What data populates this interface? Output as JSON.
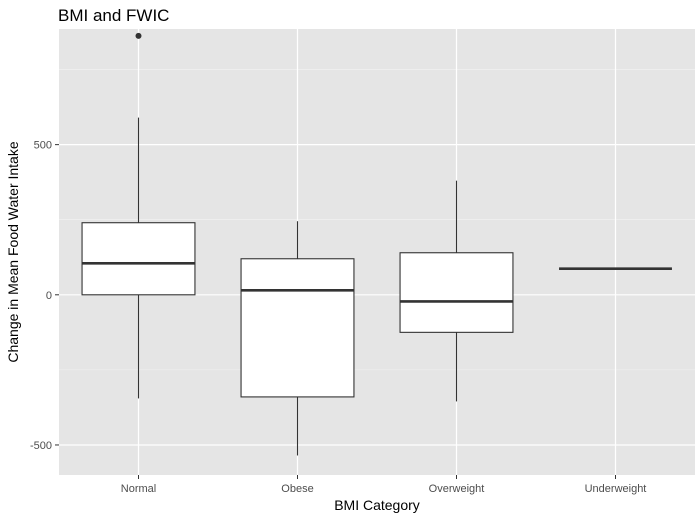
{
  "chart_data": {
    "type": "boxplot",
    "title": "BMI and FWIC",
    "xlabel": "BMI Category",
    "ylabel": "Change in Mean Food Water Intake",
    "categories": [
      "Normal",
      "Obese",
      "Overweight",
      "Underweight"
    ],
    "ylim": [
      -600,
      885
    ],
    "yticks": [
      -500,
      0,
      500
    ],
    "ytick_labels": [
      "-500",
      "0",
      "500"
    ],
    "grid": true,
    "legend": "none",
    "boxes": [
      {
        "category": "Normal",
        "lower_whisker": -345,
        "q1": 0,
        "median": 105,
        "q3": 240,
        "upper_whisker": 590,
        "outliers": [
          862
        ]
      },
      {
        "category": "Obese",
        "lower_whisker": -535,
        "q1": -340,
        "median": 15,
        "q3": 120,
        "upper_whisker": 245,
        "outliers": []
      },
      {
        "category": "Overweight",
        "lower_whisker": -355,
        "q1": -125,
        "median": -22,
        "q3": 140,
        "upper_whisker": 380,
        "outliers": []
      },
      {
        "category": "Underweight",
        "lower_whisker": 87,
        "q1": 87,
        "median": 87,
        "q3": 87,
        "upper_whisker": 87,
        "outliers": []
      }
    ],
    "colors": {
      "panel_background": "#e5e5e5",
      "grid_major": "#ffffff",
      "box_fill": "#ffffff",
      "box_line": "#333333",
      "outlier": "#333333"
    }
  }
}
